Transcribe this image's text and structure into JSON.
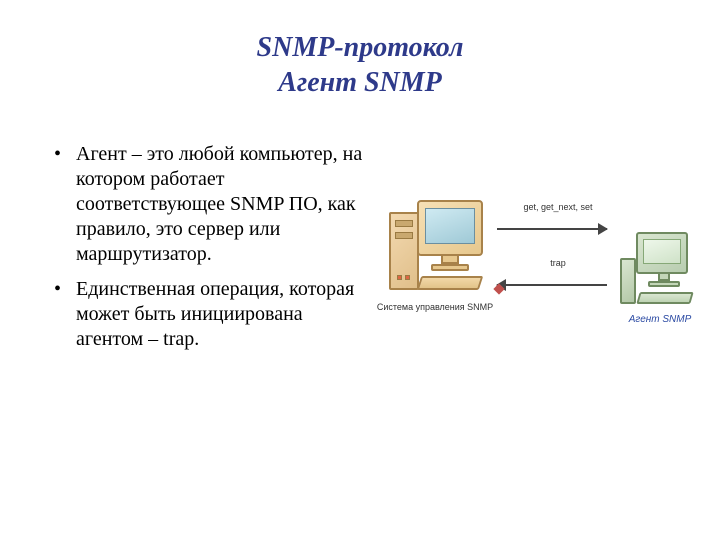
{
  "title": {
    "line1": "SNMP-протокол",
    "line2": "Агент SNMP",
    "color": "#2e3a8a",
    "font_size": 28,
    "italic": true,
    "bold": true
  },
  "bullets": [
    " Агент – это любой компьютер, на котором работает соответствующее SNMP ПО, как правило, это сервер или маршрутизатор.",
    "Единственная операция, которая может быть инициирована агентом – trap."
  ],
  "body_font_size": 20,
  "diagram": {
    "type": "infographic",
    "manager": {
      "label": "Система управления SNMP",
      "case_color": "#e7c88e",
      "case_border": "#a8824a",
      "screen_color": "#cfeaf2"
    },
    "agent": {
      "label": "Агент SNMP",
      "case_color": "#d9e6d0",
      "case_border": "#6f8a60",
      "screen_color": "#eef7ea",
      "label_color": "#2b4aa3"
    },
    "arrow_to_agent_label": "get, get_next, set",
    "arrow_to_manager_label": "trap",
    "arrow_color": "#444444",
    "diamond_color": "#c0504d",
    "label_font_size": 9
  },
  "background_color": "#ffffff"
}
